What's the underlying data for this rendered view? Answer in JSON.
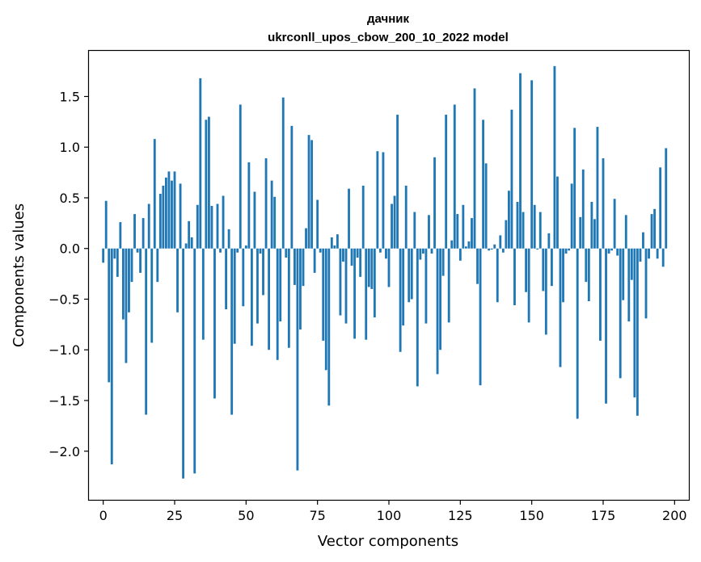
{
  "chart_data": {
    "type": "bar",
    "title": "дачник",
    "subtitle": "ukrconll_upos_cbow_200_10_2022 model",
    "xlabel": "Vector components",
    "ylabel": "Components values",
    "xlim": [
      -5,
      205
    ],
    "ylim": [
      -2.48,
      1.95
    ],
    "xticks": [
      0,
      25,
      50,
      75,
      100,
      125,
      150,
      175,
      200
    ],
    "yticks": [
      -2.0,
      -1.5,
      -1.0,
      -0.5,
      0.0,
      0.5,
      1.0,
      1.5
    ],
    "ytick_labels": [
      "−2.0",
      "−1.5",
      "−1.0",
      "−0.5",
      "0.0",
      "0.5",
      "1.0",
      "1.5"
    ],
    "bar_color": "#1f77b4",
    "values": [
      -0.14,
      0.47,
      -1.32,
      -2.13,
      -0.1,
      -0.28,
      0.26,
      -0.7,
      -1.13,
      -0.63,
      -0.33,
      0.34,
      -0.04,
      -0.24,
      0.3,
      -1.64,
      0.44,
      -0.93,
      1.08,
      -0.33,
      0.54,
      0.62,
      0.7,
      0.76,
      0.67,
      0.76,
      -0.63,
      0.64,
      -2.27,
      0.05,
      0.27,
      0.11,
      -2.22,
      0.43,
      1.68,
      -0.9,
      1.27,
      1.3,
      0.42,
      -1.48,
      0.44,
      -0.04,
      0.52,
      -0.6,
      0.19,
      -1.64,
      -0.94,
      -0.04,
      1.42,
      -0.57,
      0.03,
      0.85,
      -0.96,
      0.56,
      -0.74,
      -0.05,
      -0.46,
      0.89,
      -1.0,
      0.67,
      0.51,
      -1.1,
      -0.72,
      1.49,
      -0.09,
      -0.98,
      1.21,
      -0.36,
      -2.19,
      -0.8,
      -0.37,
      0.2,
      1.12,
      1.07,
      -0.24,
      0.48,
      -0.04,
      -0.91,
      -1.2,
      -1.55,
      0.11,
      0.03,
      0.14,
      -0.66,
      -0.13,
      -0.74,
      0.59,
      -0.17,
      -0.89,
      -0.09,
      -0.28,
      0.62,
      -0.9,
      -0.38,
      -0.4,
      -0.68,
      0.96,
      -0.04,
      0.95,
      -0.1,
      -0.38,
      0.44,
      0.52,
      1.32,
      -1.02,
      -0.76,
      0.62,
      -0.53,
      -0.5,
      0.36,
      -1.36,
      -0.11,
      -0.05,
      -0.74,
      0.33,
      -0.05,
      0.9,
      -1.24,
      -1.0,
      -0.27,
      1.32,
      -0.73,
      0.08,
      1.42,
      0.34,
      -0.12,
      0.43,
      0.02,
      0.07,
      0.3,
      1.58,
      -0.35,
      -1.35,
      1.27,
      0.84,
      -0.02,
      -0.01,
      0.04,
      -0.53,
      0.13,
      -0.04,
      0.28,
      0.57,
      1.37,
      -0.56,
      0.46,
      1.73,
      0.36,
      -0.43,
      -0.73,
      1.66,
      0.43,
      -0.01,
      0.36,
      -0.42,
      -0.85,
      0.15,
      -0.37,
      1.8,
      0.71,
      -1.17,
      -0.53,
      -0.05,
      -0.02,
      0.64,
      1.19,
      -1.68,
      0.31,
      0.78,
      -0.33,
      -0.52,
      0.46,
      0.29,
      1.2,
      -0.91,
      0.89,
      -1.53,
      -0.05,
      -0.02,
      0.49,
      -0.07,
      -1.28,
      -0.51,
      0.33,
      -0.72,
      -0.31,
      -1.47,
      -1.65,
      -0.13,
      0.16,
      -0.69,
      -0.1,
      0.34,
      0.39,
      -0.1,
      0.8,
      -0.18,
      0.99
    ]
  }
}
